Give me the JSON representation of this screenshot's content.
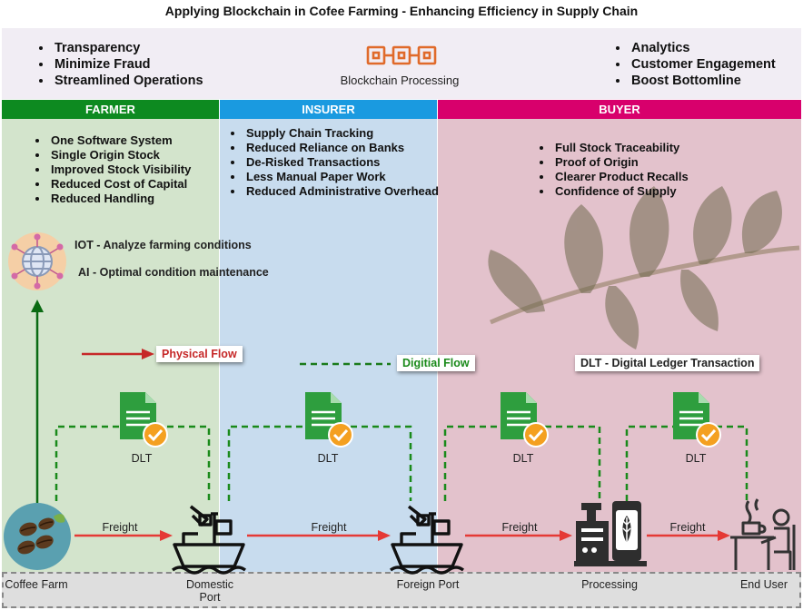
{
  "title": "Applying Blockchain in Cofee Farming - Enhancing Efficiency in Supply Chain",
  "top": {
    "left_items": [
      "Transparency",
      "Minimize Fraud",
      "Streamlined Operations"
    ],
    "center_label": "Blockchain Processing",
    "right_items": [
      "Analytics",
      "Customer Engagement",
      "Boost Bottomline"
    ]
  },
  "headers": {
    "farmer": "FARMER",
    "insurer": "INSURER",
    "buyer": "BUYER"
  },
  "colors": {
    "farmer_header": "#0d8a20",
    "insurer_header": "#1a9ae0",
    "buyer_header": "#d8006c",
    "farmer_panel": "#d3e4cc",
    "insurer_panel": "#c8dcee",
    "buyer_panel": "#e3c2cc",
    "flow_red": "#e53935",
    "dashed_green": "#1a8a1a",
    "doc_green": "#2e9e3e",
    "check_orange": "#f4a020",
    "blockchain_orange": "#e06a2a"
  },
  "farmer": {
    "items": [
      "One Software System",
      "Single Origin Stock",
      "Improved Stock Visibility",
      "Reduced Cost of Capital",
      "Reduced Handling"
    ],
    "iot": "IOT -  Analyze farming conditions",
    "ai": "AI - Optimal condition maintenance"
  },
  "insurer": {
    "items": [
      "Supply Chain Tracking",
      "Reduced Reliance on Banks",
      "De-Risked Transactions",
      "Less Manual Paper Work",
      "Reduced Administrative Overhead"
    ]
  },
  "buyer": {
    "items": [
      "Full Stock Traceability",
      "Proof of Origin",
      "Clearer Product Recalls",
      "Confidence of Supply"
    ]
  },
  "legend": {
    "physical": "Physical Flow",
    "digital": "Digitial Flow",
    "dlt": "DLT - Digital Ledger Transaction"
  },
  "dlt_label": "DLT",
  "freight_label": "Freight",
  "nodes": {
    "coffee_farm": "Coffee Farm",
    "domestic_port": "Domestic Port",
    "foreign_port": "Foreign Port",
    "processing": "Processing",
    "end_user": "End User"
  },
  "icons": {
    "blockchain": "blockchain-chain-icon",
    "iot": "network-globe-icon",
    "document": "document-check-icon",
    "ship": "cargo-ship-icon",
    "processing": "factory-machine-icon",
    "end_user": "coffee-drinker-icon",
    "coffee": "coffee-beans-icon",
    "leaves": "coffee-leaves-image"
  }
}
